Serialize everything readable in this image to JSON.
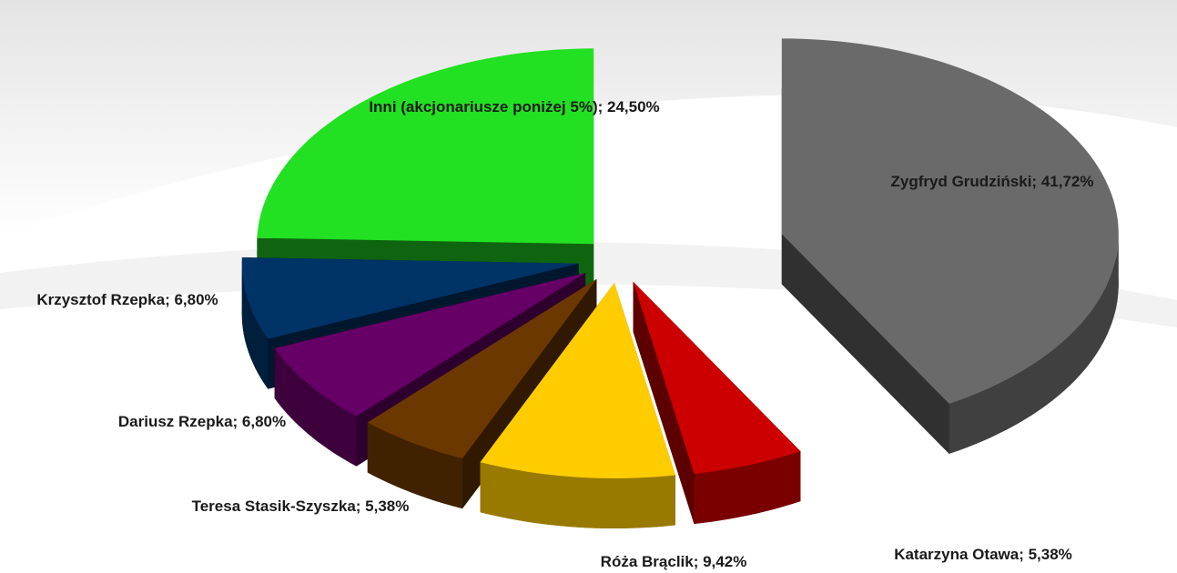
{
  "chart_data": {
    "type": "pie",
    "values": [
      41.72,
      5.38,
      9.42,
      5.38,
      6.8,
      6.8,
      24.5
    ],
    "value_labels": [
      "Zygfryd Grudziński; 41,72%",
      "Katarzyna Otawa; 5,38%",
      "Róża Brąclik; 9,42%",
      "Teresa Stasik-Szyszka; 5,38%",
      "Dariusz Rzepka; 6,80%",
      "Krzysztof Rzepka; 6,80%",
      "Inni (akcjonariusze poniżej 5%); 24,50%"
    ],
    "colors": [
      "#6a6a6a",
      "#cc0000",
      "#ffcc00",
      "#6b3800",
      "#660066",
      "#003366",
      "#22e022"
    ]
  }
}
